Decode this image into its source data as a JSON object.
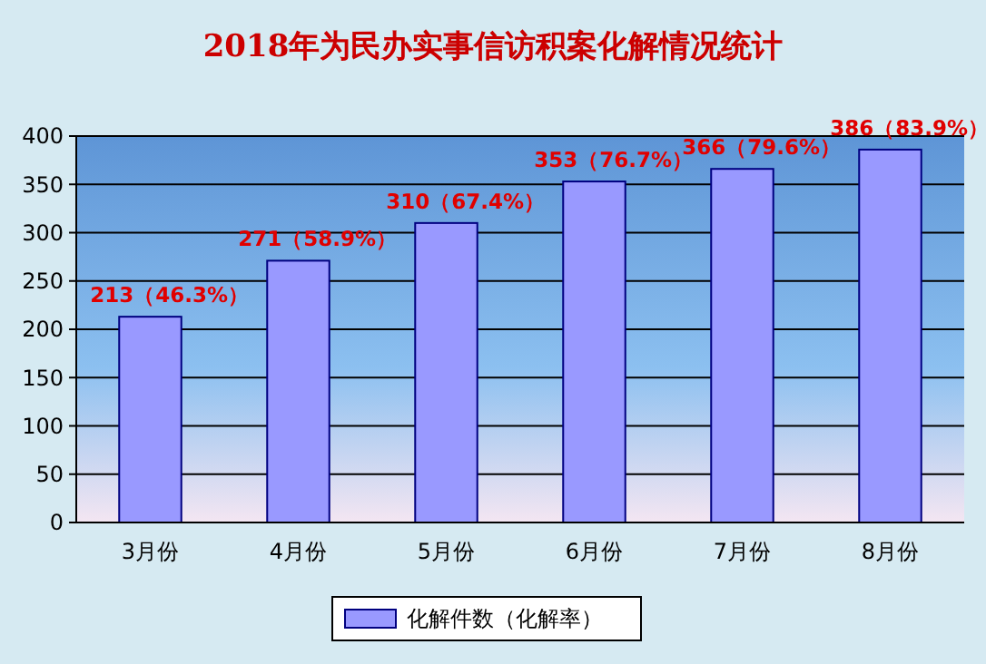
{
  "chart_data": {
    "type": "bar",
    "title": "2018年为民办实事信访积案化解情况统计",
    "categories": [
      "3月份",
      "4月份",
      "5月份",
      "6月份",
      "7月份",
      "8月份"
    ],
    "series": [
      {
        "name": "化解件数（化解率）",
        "color": "#9999ff",
        "values": [
          213,
          271,
          310,
          353,
          366,
          386
        ],
        "value_labels": [
          "213（46.3%）",
          "271（58.9%）",
          "310（67.4%）",
          "353（76.7%）",
          "366（79.6%）",
          "386（83.9%）"
        ]
      }
    ],
    "ylim": [
      0,
      400
    ],
    "yticks": [
      0,
      50,
      100,
      150,
      200,
      250,
      300,
      350,
      400
    ],
    "grid": "y",
    "legend": "bottom"
  }
}
